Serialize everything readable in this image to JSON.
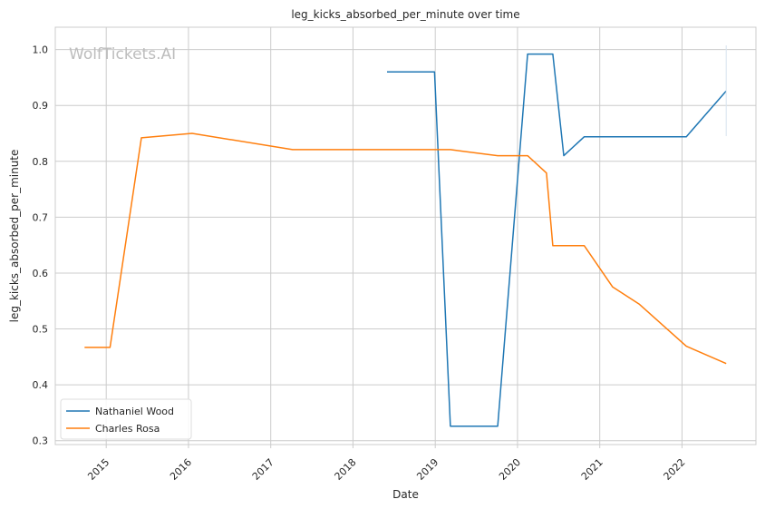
{
  "chart_data": {
    "type": "line",
    "title": "leg_kicks_absorbed_per_minute over time",
    "xlabel": "Date",
    "ylabel": "leg_kicks_absorbed_per_minute",
    "watermark": "WolfTickets.AI",
    "xlim": [
      "2014-05-20",
      "2022-11-25"
    ],
    "ylim": [
      0.293,
      1.04
    ],
    "x_ticks": [
      "2015",
      "2016",
      "2017",
      "2018",
      "2019",
      "2020",
      "2021",
      "2022"
    ],
    "y_ticks": [
      "0.3",
      "0.4",
      "0.5",
      "0.6",
      "0.7",
      "0.8",
      "0.9",
      "1.0"
    ],
    "grid": true,
    "legend_position": "lower-left",
    "series": [
      {
        "name": "Nathaniel Wood",
        "color": "#1f77b4",
        "points": [
          {
            "x": "2018-06-01",
            "y": 0.96
          },
          {
            "x": "2018-12-29",
            "y": 0.96
          },
          {
            "x": "2019-03-09",
            "y": 0.326
          },
          {
            "x": "2019-10-05",
            "y": 0.326
          },
          {
            "x": "2020-02-15",
            "y": 0.992
          },
          {
            "x": "2020-06-06",
            "y": 0.992
          },
          {
            "x": "2020-07-25",
            "y": 0.81
          },
          {
            "x": "2020-10-24",
            "y": 0.844
          },
          {
            "x": "2022-01-20",
            "y": 0.844
          },
          {
            "x": "2022-07-16",
            "y": 0.926
          }
        ]
      },
      {
        "name": "Charles Rosa",
        "color": "#ff7f0e",
        "points": [
          {
            "x": "2014-09-27",
            "y": 0.467
          },
          {
            "x": "2015-01-18",
            "y": 0.467
          },
          {
            "x": "2015-06-06",
            "y": 0.842
          },
          {
            "x": "2016-01-17",
            "y": 0.85
          },
          {
            "x": "2017-04-08",
            "y": 0.821
          },
          {
            "x": "2019-03-09",
            "y": 0.821
          },
          {
            "x": "2019-10-05",
            "y": 0.81
          },
          {
            "x": "2020-02-15",
            "y": 0.81
          },
          {
            "x": "2020-05-09",
            "y": 0.779
          },
          {
            "x": "2020-06-06",
            "y": 0.649
          },
          {
            "x": "2020-10-24",
            "y": 0.649
          },
          {
            "x": "2021-02-27",
            "y": 0.575
          },
          {
            "x": "2021-06-26",
            "y": 0.544
          },
          {
            "x": "2022-01-20",
            "y": 0.469
          },
          {
            "x": "2022-07-16",
            "y": 0.438
          }
        ]
      }
    ]
  }
}
